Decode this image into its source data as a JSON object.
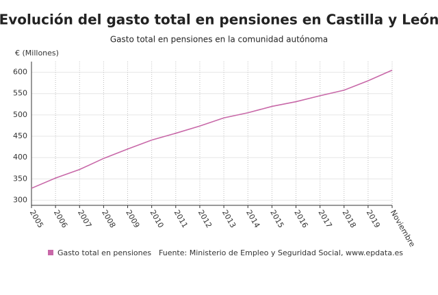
{
  "chart_data": {
    "type": "line",
    "title": "Evolución del gasto total en pensiones en Castilla y León",
    "subtitle": "Gasto total en pensiones en la comunidad autónoma",
    "y_label": "€ (Millones)",
    "source": "Fuente: Ministerio de Empleo y Seguridad Social, www.epdata.es",
    "categories": [
      "2005",
      "2006",
      "2007",
      "2008",
      "2009",
      "2010",
      "2011",
      "2012",
      "2013",
      "2014",
      "2015",
      "2016",
      "2017",
      "2018",
      "2019",
      "Noviembre"
    ],
    "series": [
      {
        "name": "Gasto total en pensiones",
        "color": "#c868a8",
        "values": [
          328,
          352,
          372,
          398,
          420,
          441,
          457,
          474,
          493,
          505,
          520,
          531,
          545,
          558,
          580,
          605
        ]
      }
    ],
    "ylim": [
      288,
      625
    ],
    "yticks": [
      300,
      350,
      400,
      450,
      500,
      550,
      600
    ],
    "grid": true,
    "legend": "bottom"
  }
}
